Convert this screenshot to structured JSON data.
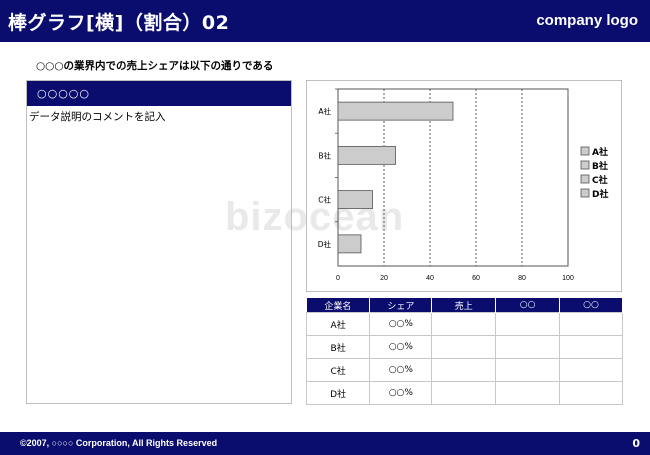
{
  "header": {
    "title": "棒グラフ[横]（割合）02",
    "logo": "company logo"
  },
  "subtitle": "○○○の業界内での売上シェアは以下の通りである",
  "left_panel": {
    "heading": "○○○○○",
    "comment": "データ説明のコメントを記入"
  },
  "watermark": "bizocean",
  "chart_data": {
    "type": "bar",
    "orientation": "horizontal",
    "categories": [
      "A社",
      "B社",
      "C社",
      "D社"
    ],
    "values": [
      50,
      25,
      15,
      10
    ],
    "xlim": [
      0,
      100
    ],
    "xticks": [
      "0",
      "20",
      "40",
      "60",
      "80",
      "100"
    ],
    "legend": [
      "A社",
      "B社",
      "C社",
      "D社"
    ],
    "legend_position": "right",
    "grid": "vertical dashed",
    "bar_color": "#cccccc"
  },
  "table": {
    "headers": [
      "企業名",
      "シェア",
      "売上",
      "○○",
      "○○"
    ],
    "rows": [
      [
        "A社",
        "○○%",
        "",
        "",
        ""
      ],
      [
        "B社",
        "○○%",
        "",
        "",
        ""
      ],
      [
        "C社",
        "○○%",
        "",
        "",
        ""
      ],
      [
        "D社",
        "○○%",
        "",
        "",
        ""
      ]
    ]
  },
  "footer": {
    "copyright": "©2007, ○○○○ Corporation, All Rights Reserved",
    "page": "0"
  }
}
